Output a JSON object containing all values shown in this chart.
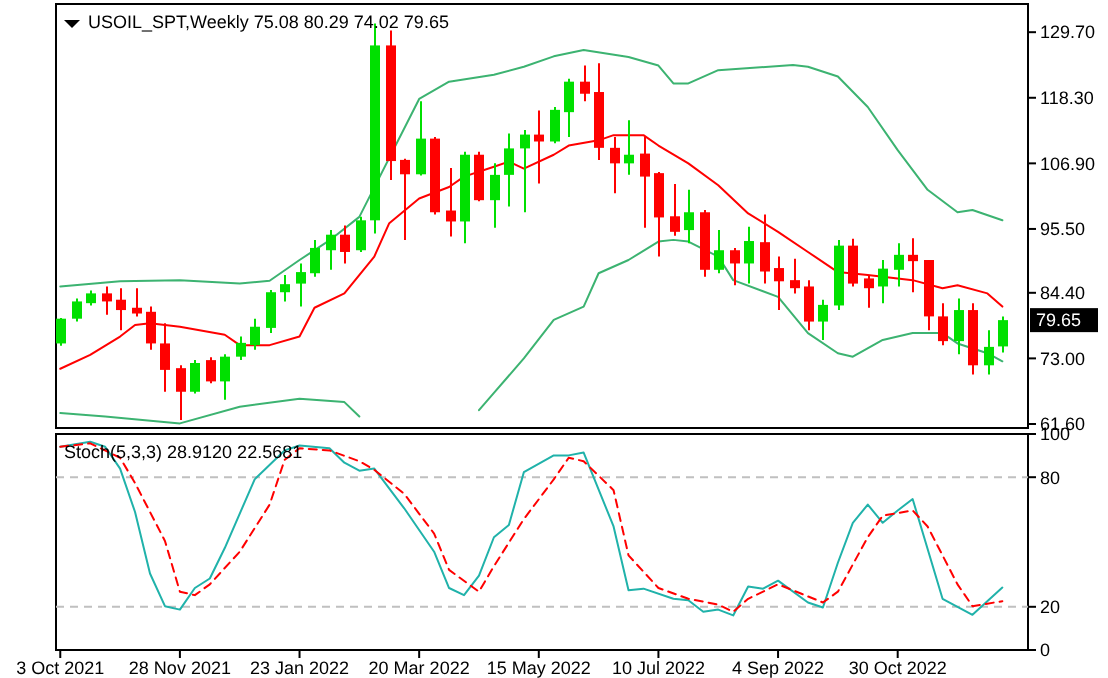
{
  "chart_data": [
    {
      "type": "candlestick",
      "title": "USOIL_SPT,Weekly 75.08 80.29 74.02 79.65",
      "x": [
        "2021-10-03",
        "2021-10-10",
        "2021-10-17",
        "2021-10-24",
        "2021-10-31",
        "2021-11-07",
        "2021-11-14",
        "2021-11-21",
        "2021-11-28",
        "2021-12-05",
        "2021-12-12",
        "2021-12-19",
        "2021-12-26",
        "2022-01-02",
        "2022-01-09",
        "2022-01-16",
        "2022-01-23",
        "2022-01-30",
        "2022-02-06",
        "2022-02-13",
        "2022-02-20",
        "2022-02-27",
        "2022-03-06",
        "2022-03-13",
        "2022-03-20",
        "2022-03-27",
        "2022-04-03",
        "2022-04-10",
        "2022-04-17",
        "2022-04-24",
        "2022-05-01",
        "2022-05-08",
        "2022-05-15",
        "2022-05-22",
        "2022-05-29",
        "2022-06-05",
        "2022-06-12",
        "2022-06-19",
        "2022-06-26",
        "2022-07-03",
        "2022-07-10",
        "2022-07-17",
        "2022-07-24",
        "2022-07-31",
        "2022-08-07",
        "2022-08-14",
        "2022-08-21",
        "2022-08-28",
        "2022-09-04",
        "2022-09-11",
        "2022-09-18",
        "2022-09-25",
        "2022-10-02",
        "2022-10-09",
        "2022-10-16",
        "2022-10-23",
        "2022-10-30",
        "2022-11-06",
        "2022-11-13",
        "2022-11-20",
        "2022-11-27",
        "2022-12-04",
        "2022-12-11",
        "2022-12-18"
      ],
      "ohlc": [
        [
          75.6,
          80.0,
          75.2,
          79.9
        ],
        [
          79.9,
          83.4,
          79.4,
          82.9
        ],
        [
          82.6,
          84.8,
          82.2,
          84.3
        ],
        [
          84.3,
          85.5,
          80.6,
          82.9
        ],
        [
          83.2,
          85.2,
          77.9,
          81.4
        ],
        [
          81.8,
          85.2,
          80.3,
          80.8
        ],
        [
          81.1,
          82.0,
          74.5,
          75.6
        ],
        [
          75.6,
          79.1,
          67.2,
          71.0
        ],
        [
          71.3,
          71.8,
          62.3,
          67.2
        ],
        [
          67.2,
          72.7,
          66.9,
          72.2
        ],
        [
          72.7,
          73.2,
          68.7,
          69.0
        ],
        [
          69.0,
          73.7,
          65.8,
          73.3
        ],
        [
          73.3,
          76.8,
          72.7,
          75.7
        ],
        [
          75.3,
          79.9,
          74.5,
          78.5
        ],
        [
          78.3,
          84.9,
          77.4,
          84.5
        ],
        [
          84.5,
          87.5,
          82.9,
          85.9
        ],
        [
          86.0,
          89.5,
          82.0,
          88.0
        ],
        [
          87.8,
          93.6,
          87.2,
          92.2
        ],
        [
          91.8,
          95.3,
          88.4,
          94.5
        ],
        [
          94.5,
          96.1,
          89.5,
          91.5
        ],
        [
          91.8,
          97.6,
          91.5,
          97.0
        ],
        [
          97.0,
          131.2,
          94.7,
          127.4
        ],
        [
          127.4,
          130.0,
          104.0,
          107.3
        ],
        [
          107.5,
          107.7,
          93.6,
          105.0
        ],
        [
          105.0,
          117.7,
          104.8,
          111.2
        ],
        [
          111.2,
          111.5,
          98.0,
          98.4
        ],
        [
          98.7,
          106.1,
          94.2,
          96.8
        ],
        [
          96.8,
          108.9,
          93.0,
          108.4
        ],
        [
          108.4,
          108.9,
          100.3,
          100.5
        ],
        [
          100.5,
          106.9,
          95.7,
          104.9
        ],
        [
          104.9,
          112.1,
          99.4,
          109.5
        ],
        [
          109.5,
          112.7,
          98.4,
          111.9
        ],
        [
          111.9,
          116.1,
          103.4,
          110.7
        ],
        [
          110.7,
          116.7,
          110.4,
          116.2
        ],
        [
          115.8,
          121.6,
          111.5,
          121.1
        ],
        [
          121.1,
          123.9,
          117.7,
          119.0
        ],
        [
          119.3,
          124.3,
          107.5,
          109.6
        ],
        [
          109.6,
          111.5,
          101.7,
          106.9
        ],
        [
          106.9,
          114.4,
          104.9,
          108.4
        ],
        [
          108.6,
          111.5,
          95.7,
          104.6
        ],
        [
          105.2,
          105.4,
          90.7,
          97.5
        ],
        [
          97.7,
          103.3,
          94.3,
          95.0
        ],
        [
          95.3,
          102.3,
          93.0,
          98.4
        ],
        [
          98.4,
          98.8,
          87.2,
          88.4
        ],
        [
          88.4,
          95.3,
          87.8,
          91.8
        ],
        [
          91.8,
          92.2,
          85.7,
          89.5
        ],
        [
          89.5,
          95.9,
          86.0,
          93.4
        ],
        [
          93.2,
          98.0,
          86.0,
          88.1
        ],
        [
          88.7,
          90.7,
          81.4,
          86.4
        ],
        [
          86.6,
          90.3,
          84.3,
          85.2
        ],
        [
          85.5,
          86.6,
          77.9,
          79.4
        ],
        [
          79.4,
          83.2,
          76.2,
          82.3
        ],
        [
          82.2,
          93.6,
          81.4,
          92.6
        ],
        [
          92.6,
          93.8,
          85.5,
          86.0
        ],
        [
          86.9,
          87.5,
          81.8,
          85.2
        ],
        [
          85.5,
          90.1,
          82.6,
          88.6
        ],
        [
          88.4,
          93.0,
          85.5,
          91.0
        ],
        [
          91.0,
          93.9,
          84.5,
          89.9
        ],
        [
          90.1,
          90.1,
          77.9,
          80.3
        ],
        [
          80.3,
          82.6,
          75.3,
          76.0
        ],
        [
          76.0,
          83.4,
          73.7,
          81.4
        ],
        [
          81.4,
          82.6,
          70.2,
          71.8
        ],
        [
          71.8,
          77.9,
          70.2,
          75.0
        ],
        [
          75.08,
          80.29,
          74.02,
          79.65
        ]
      ],
      "colors": [
        "#00e000",
        "#00e000",
        "#00e000",
        "#ff0000",
        "#ff0000",
        "#ff0000",
        "#ff0000",
        "#ff0000",
        "#ff0000",
        "#00e000",
        "#ff0000",
        "#00e000",
        "#00e000",
        "#00e000",
        "#00e000",
        "#00e000",
        "#00e000",
        "#00e000",
        "#00e000",
        "#ff0000",
        "#00e000",
        "#00e000",
        "#ff0000",
        "#ff0000",
        "#00e000",
        "#ff0000",
        "#ff0000",
        "#00e000",
        "#ff0000",
        "#00e000",
        "#00e000",
        "#00e000",
        "#ff0000",
        "#00e000",
        "#00e000",
        "#ff0000",
        "#ff0000",
        "#ff0000",
        "#00e000",
        "#ff0000",
        "#ff0000",
        "#ff0000",
        "#00e000",
        "#ff0000",
        "#00e000",
        "#ff0000",
        "#00e000",
        "#ff0000",
        "#ff0000",
        "#ff0000",
        "#ff0000",
        "#00e000",
        "#00e000",
        "#ff0000",
        "#ff0000",
        "#00e000",
        "#00e000",
        "#ff0000",
        "#ff0000",
        "#ff0000",
        "#00e000",
        "#ff0000",
        "#00e000",
        "#00e000"
      ],
      "series": [
        {
          "type": "line",
          "color": "#3cb371",
          "x": [
            "2021-10-03",
            "2021-10-31",
            "2021-11-28",
            "2021-12-26",
            "2022-01-09",
            "2022-01-23",
            "2022-02-06",
            "2022-02-20",
            "2022-03-20",
            "2022-04-03",
            "2022-04-24",
            "2022-05-08",
            "2022-05-22",
            "2022-06-05",
            "2022-06-26",
            "2022-07-10",
            "2022-07-17",
            "2022-07-24",
            "2022-08-07",
            "2022-09-11",
            "2022-09-18",
            "2022-10-02",
            "2022-10-16",
            "2022-10-30",
            "2022-11-13",
            "2022-11-27",
            "2022-12-04",
            "2022-12-18"
          ],
          "values": [
            85.5,
            86.4,
            86.6,
            86.0,
            86.5,
            90.1,
            93.5,
            97.6,
            118.1,
            121.1,
            122.3,
            123.7,
            125.5,
            126.6,
            125.4,
            123.9,
            120.8,
            120.8,
            123.1,
            124.0,
            123.7,
            122.0,
            116.7,
            109.2,
            102.3,
            98.4,
            98.8,
            97.0
          ]
        },
        {
          "type": "line",
          "color": "#ff0000",
          "x": [
            "2021-10-03",
            "2021-10-17",
            "2021-10-31",
            "2021-11-07",
            "2021-11-14",
            "2021-11-28",
            "2021-12-19",
            "2021-12-26",
            "2022-01-09",
            "2022-01-23",
            "2022-01-30",
            "2022-02-13",
            "2022-02-27",
            "2022-03-06",
            "2022-03-20",
            "2022-04-03",
            "2022-04-10",
            "2022-04-24",
            "2022-05-01",
            "2022-05-08",
            "2022-05-22",
            "2022-05-29",
            "2022-06-12",
            "2022-06-19",
            "2022-07-03",
            "2022-07-10",
            "2022-07-24",
            "2022-08-07",
            "2022-08-21",
            "2022-09-04",
            "2022-09-18",
            "2022-10-02",
            "2022-10-16",
            "2022-10-23",
            "2022-11-06",
            "2022-11-20",
            "2022-11-27",
            "2022-12-11",
            "2022-12-18"
          ],
          "values": [
            71.2,
            73.6,
            76.8,
            78.8,
            79.1,
            78.5,
            77.1,
            75.3,
            75.3,
            76.8,
            81.8,
            84.3,
            90.7,
            96.5,
            100.8,
            102.8,
            104.6,
            106.3,
            107.2,
            106.0,
            108.4,
            110.0,
            110.9,
            111.8,
            111.8,
            110.0,
            106.9,
            103.1,
            98.2,
            95.0,
            91.5,
            88.0,
            87.5,
            87.2,
            86.6,
            85.2,
            85.7,
            84.3,
            82.0
          ]
        },
        {
          "type": "line",
          "color": "#3cb371",
          "x": [
            "2021-10-03",
            "2021-10-24",
            "2021-11-28",
            "2021-12-26",
            "2022-01-23",
            "2022-02-13",
            "2022-02-20",
            "2022-02-27",
            "2022-04-10",
            "2022-04-17",
            "2022-04-24",
            "2022-05-08",
            "2022-05-22",
            "2022-06-05",
            "2022-06-12",
            "2022-06-26",
            "2022-07-10",
            "2022-07-17",
            "2022-07-24",
            "2022-08-07",
            "2022-08-14",
            "2022-09-04",
            "2022-09-18",
            "2022-10-02",
            "2022-10-09",
            "2022-10-23",
            "2022-11-06",
            "2022-11-20",
            "2022-11-27",
            "2022-12-11",
            "2022-12-18"
          ],
          "values": [
            63.5,
            62.9,
            61.7,
            64.6,
            66.0,
            65.4,
            62.9,
            null,
            null,
            64.0,
            67.0,
            73.0,
            79.7,
            82.0,
            87.8,
            90.1,
            93.3,
            93.6,
            93.3,
            90.7,
            86.6,
            83.7,
            77.4,
            73.9,
            73.3,
            76.2,
            77.4,
            77.4,
            75.6,
            73.9,
            72.5
          ]
        }
      ],
      "xlim": [
        "2021-10-01",
        "2022-12-30"
      ],
      "ylim": [
        60.9,
        134.6
      ],
      "yticks": [
        {
          "value": 61.6,
          "label": "61.60"
        },
        {
          "value": 73,
          "label": "73.00"
        },
        {
          "value": 84.4,
          "label": "84.40"
        },
        {
          "value": 95.5,
          "label": "95.50"
        },
        {
          "value": 106.9,
          "label": "106.90"
        },
        {
          "value": 118.3,
          "label": "118.30"
        },
        {
          "value": 129.7,
          "label": "129.70"
        }
      ],
      "tick_labels": "y",
      "annotations": [
        "79.65"
      ]
    },
    {
      "type": "line",
      "title": "Stoch(5,3,3) 28.9120 22.5681",
      "series": [
        {
          "color": "#20b2aa",
          "x": [
            "2021-10-03",
            "2021-10-17",
            "2021-10-24",
            "2021-10-31",
            "2021-11-07",
            "2021-11-14",
            "2021-11-21",
            "2021-11-28",
            "2021-12-05",
            "2021-12-12",
            "2021-12-19",
            "2022-01-02",
            "2022-01-16",
            "2022-01-23",
            "2022-02-06",
            "2022-02-13",
            "2022-02-20",
            "2022-02-27",
            "2022-03-13",
            "2022-03-27",
            "2022-04-03",
            "2022-04-10",
            "2022-04-17",
            "2022-04-24",
            "2022-05-01",
            "2022-05-08",
            "2022-05-22",
            "2022-05-29",
            "2022-06-05",
            "2022-06-19",
            "2022-06-26",
            "2022-07-03",
            "2022-07-17",
            "2022-07-24",
            "2022-07-31",
            "2022-08-07",
            "2022-08-14",
            "2022-08-21",
            "2022-08-28",
            "2022-09-04",
            "2022-09-18",
            "2022-09-25",
            "2022-10-02",
            "2022-10-09",
            "2022-10-16",
            "2022-10-23",
            "2022-10-30",
            "2022-11-06",
            "2022-11-20",
            "2022-12-04",
            "2022-12-18"
          ],
          "values": [
            94.1,
            96.4,
            94.1,
            84.0,
            63.9,
            35.4,
            20.3,
            18.7,
            28.7,
            33.1,
            47.2,
            79.0,
            92.4,
            94.7,
            93.4,
            86.7,
            83.0,
            84.0,
            65.6,
            45.5,
            28.7,
            25.4,
            34.4,
            52.2,
            57.9,
            82.3,
            90.1,
            90.1,
            91.4,
            57.2,
            27.7,
            28.4,
            23.7,
            23.0,
            17.7,
            18.7,
            16.0,
            29.4,
            28.4,
            32.1,
            22.0,
            19.7,
            40.4,
            58.9,
            67.3,
            58.9,
            64.6,
            69.9,
            23.7,
            16.3,
            28.9
          ]
        },
        {
          "color": "#ff0000",
          "line_style": "dashed",
          "x": [
            "2021-10-03",
            "2021-10-17",
            "2021-10-31",
            "2021-11-07",
            "2021-11-21",
            "2021-11-28",
            "2021-12-05",
            "2021-12-12",
            "2021-12-26",
            "2022-01-09",
            "2022-01-16",
            "2022-01-23",
            "2022-02-06",
            "2022-02-20",
            "2022-02-27",
            "2022-03-13",
            "2022-03-27",
            "2022-04-03",
            "2022-04-17",
            "2022-04-24",
            "2022-05-08",
            "2022-05-22",
            "2022-05-29",
            "2022-06-05",
            "2022-06-19",
            "2022-06-26",
            "2022-07-10",
            "2022-07-24",
            "2022-08-07",
            "2022-08-14",
            "2022-08-21",
            "2022-09-04",
            "2022-09-25",
            "2022-10-02",
            "2022-10-16",
            "2022-10-23",
            "2022-11-06",
            "2022-11-13",
            "2022-11-27",
            "2022-12-04",
            "2022-12-18"
          ],
          "values": [
            94.1,
            95.7,
            89.0,
            77.3,
            50.5,
            27.0,
            25.4,
            30.4,
            45.5,
            67.3,
            88.0,
            93.4,
            92.4,
            87.4,
            83.4,
            72.3,
            53.9,
            37.1,
            27.0,
            38.8,
            60.6,
            79.0,
            89.0,
            87.4,
            74.0,
            43.8,
            28.7,
            23.7,
            21.0,
            17.7,
            23.7,
            30.4,
            22.0,
            27.0,
            52.2,
            62.2,
            64.6,
            57.2,
            30.4,
            20.3,
            22.6
          ]
        }
      ],
      "xlim": [
        "2021-10-01",
        "2022-12-30"
      ],
      "xticks": [
        {
          "value": "2021-10-03",
          "label": "3 Oct 2021"
        },
        {
          "value": "2021-11-28",
          "label": "28 Nov 2021"
        },
        {
          "value": "2022-01-23",
          "label": "23 Jan 2022"
        },
        {
          "value": "2022-03-20",
          "label": "20 Mar 2022"
        },
        {
          "value": "2022-05-15",
          "label": "15 May 2022"
        },
        {
          "value": "2022-07-10",
          "label": "10 Jul 2022"
        },
        {
          "value": "2022-09-04",
          "label": "4 Sep 2022"
        },
        {
          "value": "2022-10-30",
          "label": "30 Oct 2022"
        }
      ],
      "ylim": [
        0,
        100
      ],
      "yticks": [
        0,
        20,
        80,
        100
      ],
      "ref_lines": [
        {
          "axis": "y",
          "value": 20,
          "color": "#c0c0c0",
          "line_style": "dashed"
        },
        {
          "axis": "y",
          "value": 80,
          "color": "#c0c0c0",
          "line_style": "dashed"
        }
      ]
    }
  ]
}
